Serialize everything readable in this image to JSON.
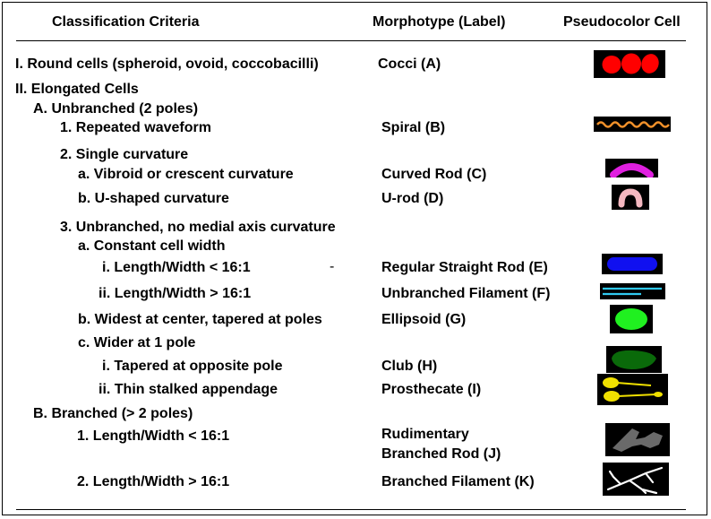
{
  "headers": {
    "criteria": "Classification Criteria",
    "morphotype": "Morphotype (Label)",
    "pseudocolor": "Pseudocolor Cell"
  },
  "rows": {
    "r1": {
      "criteria": "I. Round cells (spheroid, ovoid, coccobacilli)",
      "label": "Cocci (A)"
    },
    "r2": {
      "criteria": "II. Elongated Cells"
    },
    "r3": {
      "criteria": "A. Unbranched (2 poles)"
    },
    "r4": {
      "criteria": "1. Repeated waveform",
      "label": "Spiral (B)"
    },
    "r5": {
      "criteria": "2. Single curvature"
    },
    "r6": {
      "criteria": "a. Vibroid or crescent curvature",
      "label": "Curved Rod (C)"
    },
    "r7": {
      "criteria": "b. U-shaped curvature",
      "label": "U-rod (D)"
    },
    "r8": {
      "criteria": "3. Unbranched, no medial axis curvature"
    },
    "r9": {
      "criteria": "a. Constant cell width"
    },
    "r10": {
      "criteria": "i. Length/Width < 16:1",
      "label": "Regular Straight Rod (E)",
      "mark": "-"
    },
    "r11": {
      "criteria": "ii. Length/Width > 16:1",
      "label": "Unbranched Filament (F)"
    },
    "r12": {
      "criteria": "b. Widest at center, tapered at poles",
      "label": "Ellipsoid (G)"
    },
    "r13": {
      "criteria": "c. Wider at 1 pole"
    },
    "r14": {
      "criteria": "i. Tapered at opposite pole",
      "label": "Club (H)"
    },
    "r15": {
      "criteria": "ii. Thin stalked appendage",
      "label": "Prosthecate (I)"
    },
    "r16": {
      "criteria": "B. Branched (> 2 poles)"
    },
    "r17": {
      "criteria": "1. Length/Width < 16:1",
      "label_line1": "Rudimentary",
      "label_line2": "Branched Rod (J)"
    },
    "r18": {
      "criteria": "2. Length/Width > 16:1",
      "label": "Branched Filament (K)"
    }
  },
  "cell_colors": {
    "cocci": "#ff0000",
    "spiral": "#f0902a",
    "curved_rod": "#e020e0",
    "u_rod": "#f4b8c0",
    "straight_rod": "#1010f0",
    "filament": "#30c8f0",
    "ellipsoid": "#20f020",
    "club": "#0a6a0a",
    "prosthecate": "#f0e000",
    "branched_rod": "#6a6a6a",
    "branched_filament": "#ffffff"
  }
}
